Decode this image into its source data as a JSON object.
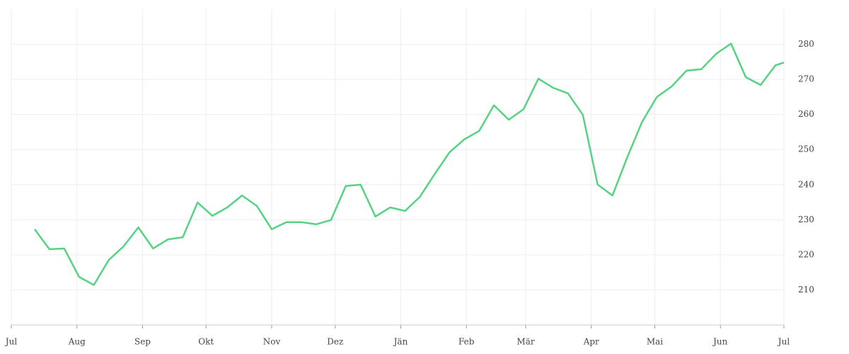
{
  "chart_data": {
    "type": "line",
    "x": [
      11,
      18,
      25,
      32,
      39,
      46,
      53,
      60,
      67,
      74,
      81,
      88,
      95,
      102,
      109,
      116,
      123,
      130,
      137,
      144,
      151,
      158,
      165,
      172,
      179,
      186,
      193,
      200,
      207,
      214,
      221,
      228,
      235,
      242,
      249,
      256,
      263,
      270,
      277,
      284,
      291,
      298,
      305,
      312,
      319,
      326,
      333,
      340,
      347,
      354,
      361,
      365
    ],
    "series": [
      {
        "color": "#55d383",
        "values": [
          227.3,
          221.6,
          221.8,
          213.7,
          211.4,
          218.5,
          222.4,
          227.8,
          221.8,
          224.4,
          225.0,
          234.9,
          231.1,
          233.5,
          236.9,
          233.9,
          227.3,
          229.3,
          229.3,
          228.7,
          229.9,
          239.6,
          240.0,
          230.9,
          233.5,
          232.5,
          236.5,
          243.0,
          249.2,
          252.9,
          255.3,
          262.6,
          258.5,
          261.5,
          270.2,
          267.6,
          266.0,
          259.9,
          240.0,
          236.9,
          247.8,
          257.9,
          265.0,
          268.0,
          272.5,
          272.9,
          277.3,
          280.2,
          270.6,
          268.4,
          274.0,
          274.8
        ]
      }
    ],
    "xlim": [
      0,
      365
    ],
    "xticks": [
      {
        "value": 0,
        "label": "Jul"
      },
      {
        "value": 31,
        "label": "Aug"
      },
      {
        "value": 62,
        "label": "Sep"
      },
      {
        "value": 92,
        "label": "Okt"
      },
      {
        "value": 123,
        "label": "Nov"
      },
      {
        "value": 153,
        "label": "Dez"
      },
      {
        "value": 184,
        "label": "Jän"
      },
      {
        "value": 215,
        "label": "Feb"
      },
      {
        "value": 243,
        "label": "Mär"
      },
      {
        "value": 274,
        "label": "Apr"
      },
      {
        "value": 304,
        "label": "Mai"
      },
      {
        "value": 335,
        "label": "Jun"
      },
      {
        "value": 365,
        "label": "Jul"
      }
    ],
    "ylim": [
      200,
      290
    ],
    "yticks": [
      210,
      220,
      230,
      240,
      250,
      260,
      270,
      280
    ],
    "grid": true
  }
}
